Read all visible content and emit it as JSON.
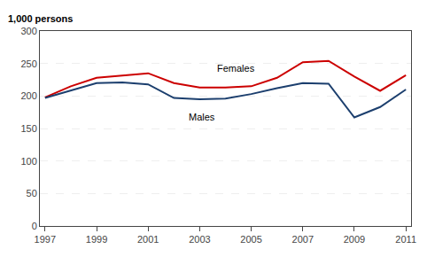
{
  "chart_data": {
    "type": "line",
    "ylabel": "1,000 persons",
    "x": [
      1997,
      1998,
      1999,
      2000,
      2001,
      2002,
      2003,
      2004,
      2005,
      2006,
      2007,
      2008,
      2009,
      2010,
      2011
    ],
    "series": [
      {
        "name": "Females",
        "color": "#cc0000",
        "values": [
          198,
          215,
          228,
          232,
          235,
          220,
          213,
          213,
          215,
          228,
          252,
          254,
          230,
          208,
          232
        ]
      },
      {
        "name": "Males",
        "color": "#1c3f6e",
        "values": [
          197,
          208,
          220,
          221,
          218,
          197,
          195,
          196,
          203,
          212,
          220,
          219,
          167,
          183,
          210
        ]
      }
    ],
    "annotations": [
      {
        "text": "Females",
        "x": 2003.6,
        "y": 232,
        "position": "above"
      },
      {
        "text": "Males",
        "x": 2002.5,
        "y": 178,
        "position": "below"
      }
    ],
    "xlim": [
      1996.8,
      2011.2
    ],
    "xticks": [
      1997,
      1999,
      2001,
      2003,
      2005,
      2007,
      2009,
      2011
    ],
    "ylim": [
      0,
      300
    ],
    "yticks": [
      0,
      50,
      100,
      150,
      200,
      250,
      300
    ],
    "grid": "y"
  }
}
